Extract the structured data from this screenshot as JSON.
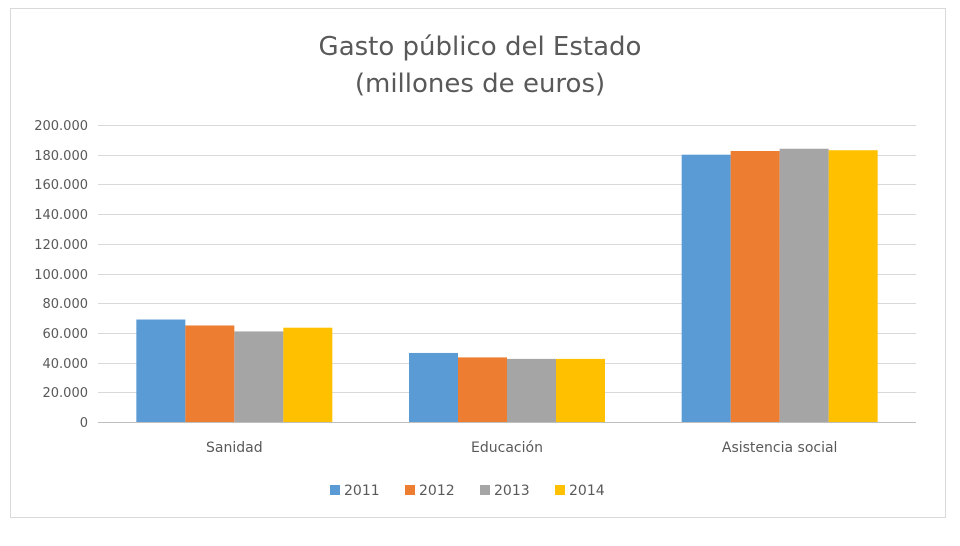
{
  "chart_data": {
    "type": "bar",
    "title": [
      "Gasto público del Estado",
      "(millones de euros)"
    ],
    "categories": [
      "Sanidad",
      "Educación",
      "Asistencia social"
    ],
    "series": [
      {
        "name": "2011",
        "color": "#5b9bd5",
        "values": [
          69000,
          46500,
          180000
        ]
      },
      {
        "name": "2012",
        "color": "#ed7d31",
        "values": [
          65000,
          43500,
          182500
        ]
      },
      {
        "name": "2013",
        "color": "#a5a5a5",
        "values": [
          61000,
          42500,
          184000
        ]
      },
      {
        "name": "2014",
        "color": "#ffc000",
        "values": [
          63500,
          42500,
          183000
        ]
      }
    ],
    "yticks": [
      "0",
      "20.000",
      "40.000",
      "60.000",
      "80.000",
      "100.000",
      "120.000",
      "140.000",
      "160.000",
      "180.000",
      "200.000"
    ],
    "ylim": [
      0,
      200000
    ],
    "grid": true,
    "legend_position": "bottom"
  }
}
